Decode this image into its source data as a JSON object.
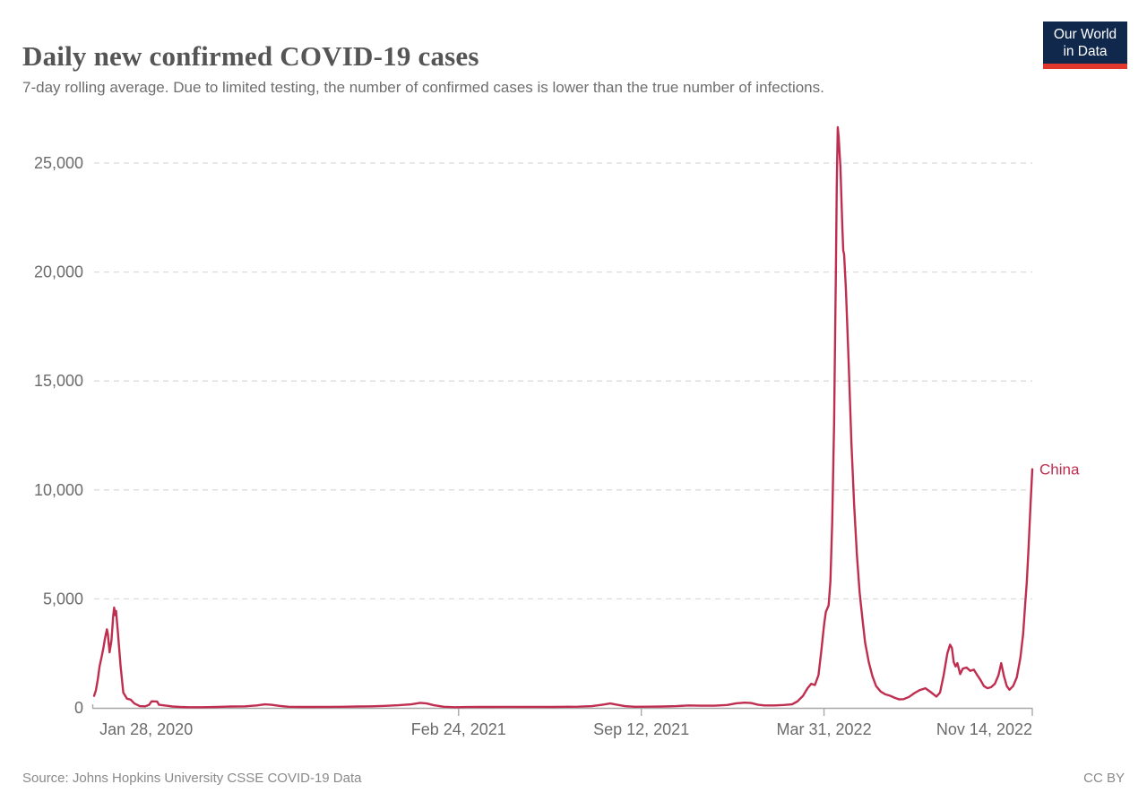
{
  "header": {
    "title": "Daily new confirmed COVID-19 cases",
    "subtitle": "7-day rolling average. Due to limited testing, the number of confirmed cases is lower than the true number of infections."
  },
  "logo": {
    "line1": "Our World",
    "line2": "in Data",
    "bg_color": "#10284c",
    "bar_color": "#e0382c"
  },
  "footer": {
    "source": "Source: Johns Hopkins University CSSE COVID-19 Data",
    "license": "CC BY"
  },
  "chart_data": {
    "type": "line",
    "title": "Daily new confirmed COVID-19 cases",
    "subtitle": "7-day rolling average. Due to limited testing, the number of confirmed cases is lower than the true number of infections.",
    "grid": "dashed-horizontal",
    "legend_position": "end-of-line-label",
    "y_axis": {
      "range": [
        0,
        26800
      ],
      "ticks": [
        {
          "value": 0,
          "label": "0"
        },
        {
          "value": 5000,
          "label": "5,000"
        },
        {
          "value": 10000,
          "label": "10,000"
        },
        {
          "value": 15000,
          "label": "15,000"
        },
        {
          "value": 20000,
          "label": "20,000"
        },
        {
          "value": 25000,
          "label": "25,000"
        }
      ]
    },
    "x_axis": {
      "range": [
        "2020-01-22",
        "2022-11-14"
      ],
      "ticks": [
        {
          "date": "2020-01-28",
          "label": "Jan 28, 2020",
          "anchor": "start"
        },
        {
          "date": "2021-02-24",
          "label": "Feb 24, 2021",
          "anchor": "middle"
        },
        {
          "date": "2021-09-12",
          "label": "Sep 12, 2021",
          "anchor": "middle"
        },
        {
          "date": "2022-03-31",
          "label": "Mar 31, 2022",
          "anchor": "middle"
        },
        {
          "date": "2022-11-14",
          "label": "Nov 14, 2022",
          "anchor": "end"
        }
      ]
    },
    "series": [
      {
        "name": "China",
        "color": "#bf2e4f",
        "points": [
          [
            "2020-01-22",
            550
          ],
          [
            "2020-01-24",
            800
          ],
          [
            "2020-01-26",
            1300
          ],
          [
            "2020-01-28",
            1900
          ],
          [
            "2020-01-30",
            2300
          ],
          [
            "2020-02-01",
            2700
          ],
          [
            "2020-02-03",
            3200
          ],
          [
            "2020-02-05",
            3600
          ],
          [
            "2020-02-06",
            3400
          ],
          [
            "2020-02-08",
            2550
          ],
          [
            "2020-02-10",
            3100
          ],
          [
            "2020-02-12",
            4250
          ],
          [
            "2020-02-13",
            4600
          ],
          [
            "2020-02-14",
            4250
          ],
          [
            "2020-02-15",
            4450
          ],
          [
            "2020-02-17",
            3500
          ],
          [
            "2020-02-20",
            1900
          ],
          [
            "2020-02-23",
            700
          ],
          [
            "2020-02-27",
            420
          ],
          [
            "2020-03-02",
            380
          ],
          [
            "2020-03-06",
            200
          ],
          [
            "2020-03-12",
            80
          ],
          [
            "2020-03-18",
            70
          ],
          [
            "2020-03-22",
            130
          ],
          [
            "2020-03-25",
            300
          ],
          [
            "2020-03-31",
            290
          ],
          [
            "2020-04-02",
            140
          ],
          [
            "2020-04-08",
            110
          ],
          [
            "2020-04-12",
            90
          ],
          [
            "2020-04-17",
            60
          ],
          [
            "2020-04-25",
            40
          ],
          [
            "2020-05-05",
            30
          ],
          [
            "2020-05-20",
            30
          ],
          [
            "2020-06-05",
            40
          ],
          [
            "2020-06-20",
            60
          ],
          [
            "2020-07-05",
            70
          ],
          [
            "2020-07-18",
            110
          ],
          [
            "2020-07-27",
            160
          ],
          [
            "2020-08-03",
            140
          ],
          [
            "2020-08-12",
            90
          ],
          [
            "2020-08-22",
            50
          ],
          [
            "2020-09-05",
            40
          ],
          [
            "2020-09-20",
            40
          ],
          [
            "2020-10-05",
            45
          ],
          [
            "2020-10-20",
            50
          ],
          [
            "2020-11-05",
            60
          ],
          [
            "2020-11-20",
            70
          ],
          [
            "2020-12-05",
            90
          ],
          [
            "2020-12-20",
            120
          ],
          [
            "2021-01-03",
            160
          ],
          [
            "2021-01-13",
            230
          ],
          [
            "2021-01-20",
            200
          ],
          [
            "2021-01-28",
            120
          ],
          [
            "2021-02-08",
            50
          ],
          [
            "2021-02-20",
            30
          ],
          [
            "2021-03-05",
            35
          ],
          [
            "2021-03-20",
            40
          ],
          [
            "2021-04-05",
            40
          ],
          [
            "2021-04-20",
            45
          ],
          [
            "2021-05-05",
            40
          ],
          [
            "2021-05-20",
            45
          ],
          [
            "2021-06-05",
            40
          ],
          [
            "2021-06-20",
            50
          ],
          [
            "2021-07-05",
            55
          ],
          [
            "2021-07-20",
            80
          ],
          [
            "2021-08-01",
            150
          ],
          [
            "2021-08-09",
            200
          ],
          [
            "2021-08-16",
            150
          ],
          [
            "2021-08-25",
            80
          ],
          [
            "2021-09-05",
            50
          ],
          [
            "2021-09-20",
            55
          ],
          [
            "2021-10-05",
            60
          ],
          [
            "2021-10-20",
            80
          ],
          [
            "2021-11-03",
            110
          ],
          [
            "2021-11-15",
            100
          ],
          [
            "2021-12-01",
            100
          ],
          [
            "2021-12-15",
            130
          ],
          [
            "2021-12-25",
            210
          ],
          [
            "2022-01-03",
            240
          ],
          [
            "2022-01-10",
            220
          ],
          [
            "2022-01-18",
            140
          ],
          [
            "2022-01-25",
            110
          ],
          [
            "2022-02-05",
            110
          ],
          [
            "2022-02-15",
            130
          ],
          [
            "2022-02-24",
            160
          ],
          [
            "2022-03-02",
            300
          ],
          [
            "2022-03-08",
            550
          ],
          [
            "2022-03-13",
            900
          ],
          [
            "2022-03-17",
            1100
          ],
          [
            "2022-03-21",
            1050
          ],
          [
            "2022-03-25",
            1500
          ],
          [
            "2022-03-28",
            2600
          ],
          [
            "2022-03-31",
            3800
          ],
          [
            "2022-04-02",
            4400
          ],
          [
            "2022-04-05",
            4700
          ],
          [
            "2022-04-07",
            5800
          ],
          [
            "2022-04-09",
            8500
          ],
          [
            "2022-04-11",
            13000
          ],
          [
            "2022-04-13",
            20000
          ],
          [
            "2022-04-14",
            24000
          ],
          [
            "2022-04-15",
            26650
          ],
          [
            "2022-04-16",
            26200
          ],
          [
            "2022-04-18",
            24800
          ],
          [
            "2022-04-20",
            22200
          ],
          [
            "2022-04-21",
            21000
          ],
          [
            "2022-04-22",
            20800
          ],
          [
            "2022-04-24",
            19200
          ],
          [
            "2022-04-27",
            15800
          ],
          [
            "2022-04-30",
            12200
          ],
          [
            "2022-05-03",
            9300
          ],
          [
            "2022-05-06",
            7000
          ],
          [
            "2022-05-09",
            5300
          ],
          [
            "2022-05-12",
            4100
          ],
          [
            "2022-05-15",
            3000
          ],
          [
            "2022-05-19",
            2100
          ],
          [
            "2022-05-23",
            1450
          ],
          [
            "2022-05-27",
            1000
          ],
          [
            "2022-06-01",
            750
          ],
          [
            "2022-06-06",
            620
          ],
          [
            "2022-06-11",
            560
          ],
          [
            "2022-06-16",
            470
          ],
          [
            "2022-06-21",
            390
          ],
          [
            "2022-06-26",
            400
          ],
          [
            "2022-07-02",
            500
          ],
          [
            "2022-07-08",
            680
          ],
          [
            "2022-07-14",
            820
          ],
          [
            "2022-07-20",
            900
          ],
          [
            "2022-07-26",
            720
          ],
          [
            "2022-08-01",
            520
          ],
          [
            "2022-08-05",
            700
          ],
          [
            "2022-08-09",
            1500
          ],
          [
            "2022-08-13",
            2500
          ],
          [
            "2022-08-16",
            2900
          ],
          [
            "2022-08-18",
            2750
          ],
          [
            "2022-08-20",
            2100
          ],
          [
            "2022-08-22",
            1900
          ],
          [
            "2022-08-24",
            2050
          ],
          [
            "2022-08-27",
            1550
          ],
          [
            "2022-08-30",
            1800
          ],
          [
            "2022-09-03",
            1850
          ],
          [
            "2022-09-07",
            1700
          ],
          [
            "2022-09-11",
            1750
          ],
          [
            "2022-09-14",
            1550
          ],
          [
            "2022-09-18",
            1300
          ],
          [
            "2022-09-22",
            1000
          ],
          [
            "2022-09-26",
            900
          ],
          [
            "2022-09-30",
            950
          ],
          [
            "2022-10-04",
            1100
          ],
          [
            "2022-10-08",
            1500
          ],
          [
            "2022-10-11",
            2050
          ],
          [
            "2022-10-14",
            1450
          ],
          [
            "2022-10-17",
            1000
          ],
          [
            "2022-10-20",
            830
          ],
          [
            "2022-10-24",
            1000
          ],
          [
            "2022-10-28",
            1400
          ],
          [
            "2022-11-01",
            2300
          ],
          [
            "2022-11-04",
            3400
          ],
          [
            "2022-11-06",
            4600
          ],
          [
            "2022-11-08",
            5800
          ],
          [
            "2022-11-10",
            7400
          ],
          [
            "2022-11-12",
            9300
          ],
          [
            "2022-11-14",
            10950
          ]
        ]
      }
    ]
  }
}
